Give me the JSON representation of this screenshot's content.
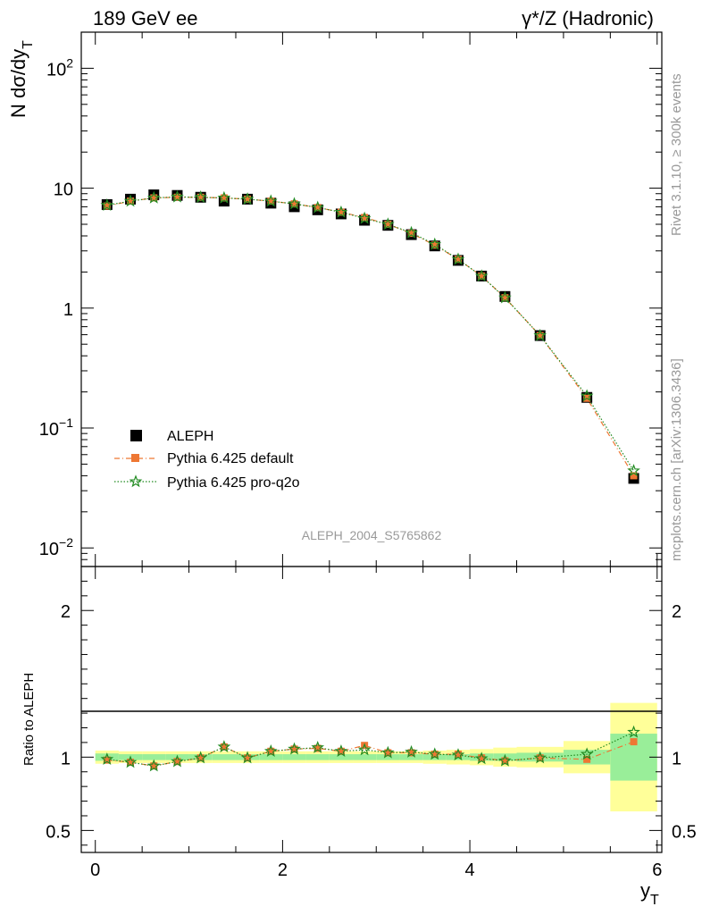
{
  "header": {
    "left_title": "189 GeV ee",
    "right_title": "γ*/Z (Hadronic)"
  },
  "side_text": {
    "rivet": "Rivet 3.1.10, ≥ 300k events",
    "mcplots": "mcplots.cern.ch [arXiv:1306.3436]"
  },
  "watermark": "ALEPH_2004_S5765862",
  "colors": {
    "data": "#000000",
    "pythia_default": "#ee7733",
    "pythia_proq2o": "#228b22",
    "band_green": "#99ee99",
    "band_yellow": "#ffff99"
  },
  "chart_data": [
    {
      "type": "scatter",
      "panel": "main",
      "xlabel": "y_T",
      "ylabel": "N dσ/dy_T",
      "yscale": "log",
      "xlim": [
        -0.15,
        6.05
      ],
      "ylim": [
        0.007,
        200
      ],
      "y_tick_labels": [
        "10^-2",
        "10^-1",
        "1",
        "10",
        "10^2"
      ],
      "legend": {
        "position": "center-left"
      },
      "x": [
        0.125,
        0.375,
        0.625,
        0.875,
        1.125,
        1.375,
        1.625,
        1.875,
        2.125,
        2.375,
        2.625,
        2.875,
        3.125,
        3.375,
        3.625,
        3.875,
        4.125,
        4.375,
        4.75,
        5.25,
        5.75
      ],
      "series": [
        {
          "name": "ALEPH",
          "marker": "square",
          "values": [
            7.3,
            8.1,
            8.8,
            8.7,
            8.4,
            7.8,
            8.1,
            7.5,
            7.0,
            6.6,
            6.1,
            5.4,
            4.9,
            4.1,
            3.3,
            2.5,
            1.85,
            1.25,
            0.59,
            0.18,
            0.038
          ]
        },
        {
          "name": "Pythia 6.425 default",
          "marker": "filled-square",
          "line": "dash-dot",
          "values": [
            7.1,
            7.8,
            8.3,
            8.4,
            8.4,
            8.3,
            8.1,
            7.8,
            7.4,
            6.9,
            6.3,
            5.7,
            5.0,
            4.2,
            3.35,
            2.55,
            1.85,
            1.22,
            0.59,
            0.177,
            0.04
          ]
        },
        {
          "name": "Pythia 6.425 pro-q2o",
          "marker": "star",
          "line": "dotted",
          "values": [
            7.2,
            7.8,
            8.3,
            8.45,
            8.4,
            8.3,
            8.1,
            7.8,
            7.4,
            6.9,
            6.3,
            5.6,
            5.0,
            4.25,
            3.4,
            2.55,
            1.85,
            1.22,
            0.59,
            0.185,
            0.044
          ]
        }
      ]
    },
    {
      "type": "line",
      "panel": "ratio",
      "xlabel": "y_T",
      "ylabel": "Ratio to ALEPH",
      "xlim": [
        -0.15,
        6.05
      ],
      "ylim": [
        0.35,
        2.3
      ],
      "x_tick_labels": [
        "0",
        "2",
        "4",
        "6"
      ],
      "y_tick_labels": [
        "0.5",
        "1",
        "2"
      ],
      "x": [
        0.125,
        0.375,
        0.625,
        0.875,
        1.125,
        1.375,
        1.625,
        1.875,
        2.125,
        2.375,
        2.625,
        2.875,
        3.125,
        3.375,
        3.625,
        3.875,
        4.125,
        4.375,
        4.75,
        5.25,
        5.75
      ],
      "bands": {
        "bin_edges": [
          0,
          0.25,
          0.5,
          0.75,
          1,
          1.25,
          1.5,
          1.75,
          2,
          2.25,
          2.5,
          2.75,
          3,
          3.25,
          3.5,
          3.75,
          4,
          4.25,
          4.5,
          5,
          5.5,
          6
        ],
        "green_halfwidth": [
          0.025,
          0.02,
          0.02,
          0.02,
          0.02,
          0.02,
          0.02,
          0.02,
          0.02,
          0.02,
          0.02,
          0.02,
          0.02,
          0.02,
          0.02,
          0.02,
          0.025,
          0.025,
          0.03,
          0.05,
          0.16
        ],
        "yellow_halfwidth": [
          0.045,
          0.04,
          0.04,
          0.04,
          0.04,
          0.04,
          0.04,
          0.04,
          0.04,
          0.04,
          0.04,
          0.04,
          0.04,
          0.04,
          0.045,
          0.05,
          0.055,
          0.065,
          0.07,
          0.11,
          0.37
        ]
      },
      "series": [
        {
          "name": "Pythia 6.425 default",
          "values": [
            0.98,
            0.965,
            0.94,
            0.97,
            0.995,
            1.07,
            0.995,
            1.04,
            1.055,
            1.06,
            1.04,
            1.08,
            1.03,
            1.03,
            1.02,
            1.02,
            0.995,
            0.975,
            0.995,
            0.985,
            1.105
          ]
        },
        {
          "name": "Pythia 6.425 pro-q2o",
          "values": [
            0.985,
            0.965,
            0.94,
            0.97,
            0.995,
            1.07,
            0.995,
            1.04,
            1.055,
            1.065,
            1.04,
            1.05,
            1.03,
            1.035,
            1.02,
            1.015,
            0.99,
            0.975,
            0.995,
            1.02,
            1.17
          ]
        }
      ]
    }
  ]
}
